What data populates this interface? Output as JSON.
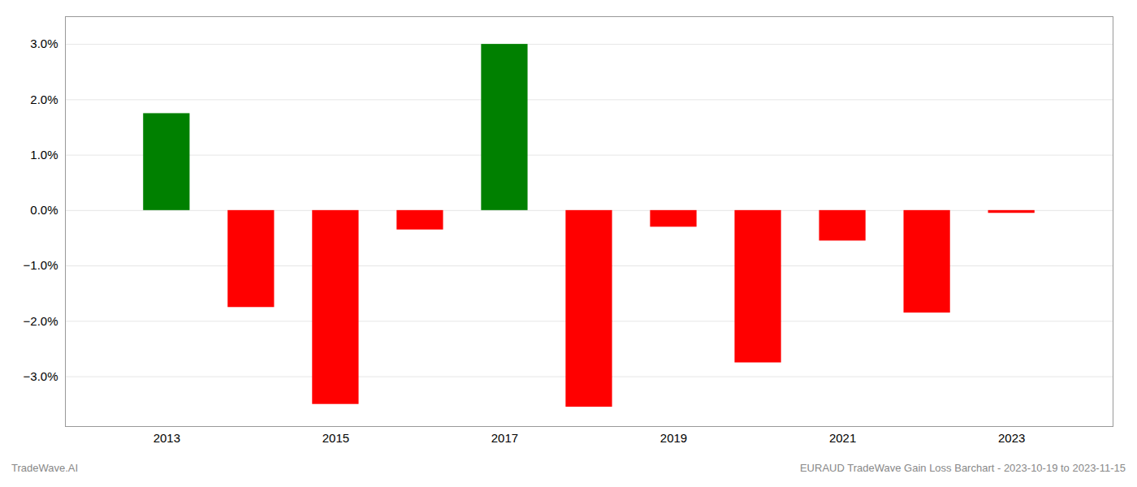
{
  "chart_data": {
    "type": "bar",
    "x": [
      2013,
      2014,
      2015,
      2016,
      2017,
      2018,
      2019,
      2020,
      2021,
      2022,
      2023
    ],
    "values": [
      1.75,
      -1.75,
      -3.5,
      -0.35,
      3.0,
      -3.55,
      -0.3,
      -2.75,
      -0.55,
      -1.85,
      -0.05
    ],
    "colors": [
      "#008000",
      "#ff0000",
      "#ff0000",
      "#ff0000",
      "#008000",
      "#ff0000",
      "#ff0000",
      "#ff0000",
      "#ff0000",
      "#ff0000",
      "#ff0000"
    ],
    "xlim": [
      2011.8,
      2024.2
    ],
    "xticks": [
      2013,
      2015,
      2017,
      2019,
      2021,
      2023
    ],
    "ylim": [
      -3.9,
      3.5
    ],
    "yticks": [
      {
        "value": -3.0,
        "label": "−3.0%"
      },
      {
        "value": -2.0,
        "label": "−2.0%"
      },
      {
        "value": -1.0,
        "label": "−1.0%"
      },
      {
        "value": 0.0,
        "label": "0.0%"
      },
      {
        "value": 1.0,
        "label": "1.0%"
      },
      {
        "value": 2.0,
        "label": "2.0%"
      },
      {
        "value": 3.0,
        "label": "3.0%"
      }
    ],
    "grid": true,
    "annotations": [
      "TradeWave.AI",
      "EURAUD TradeWave Gain Loss Barchart - 2023-10-19 to 2023-11-15"
    ]
  }
}
